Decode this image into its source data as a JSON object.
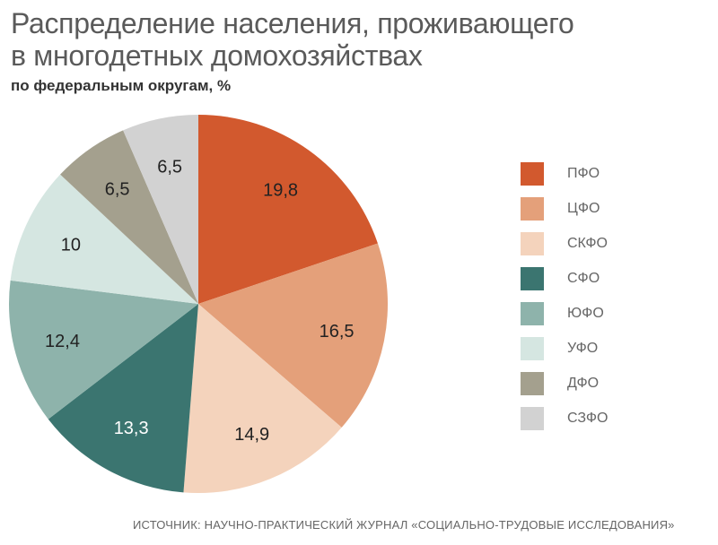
{
  "header": {
    "title_line1": "Распределение населения, проживающего",
    "title_line2": "в многодетных домохозяйствах",
    "subtitle": "по федеральным округам, %"
  },
  "source": "ИСТОЧНИК: НАУЧНО-ПРАКТИЧЕСКИЙ ЖУРНАЛ «СОЦИАЛЬНО-ТРУДОВЫЕ ИССЛЕДОВАНИЯ»",
  "chart_data": {
    "type": "pie",
    "title": "Распределение населения, проживающего в многодетных домохозяйствах",
    "subtitle": "по федеральным округам, %",
    "categories": [
      "ПФО",
      "ЦФО",
      "СКФО",
      "СФО",
      "ЮФО",
      "УФО",
      "ДФО",
      "СЗФО"
    ],
    "values": [
      19.8,
      16.5,
      14.9,
      13.3,
      12.4,
      10,
      6.5,
      6.5
    ],
    "value_labels": [
      "19,8",
      "16,5",
      "14,9",
      "13,3",
      "12,4",
      "10",
      "6,5",
      "6,5"
    ],
    "colors": [
      "#d2592e",
      "#e4a07a",
      "#f4d3bc",
      "#3b7570",
      "#8eb3ab",
      "#d5e6e1",
      "#a4a08e",
      "#d2d2d2"
    ],
    "legend_position": "right",
    "start": "top, clockwise"
  }
}
